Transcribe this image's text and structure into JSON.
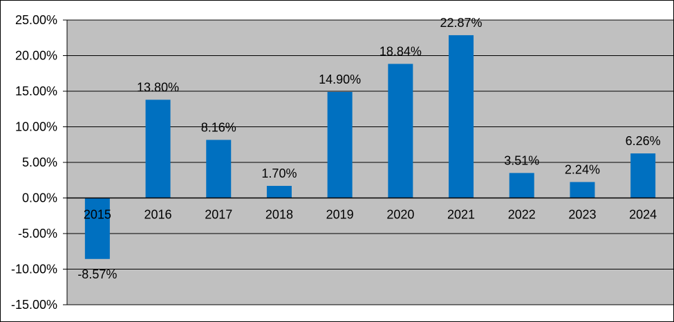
{
  "chart_data": {
    "type": "bar",
    "categories": [
      "2015",
      "2016",
      "2017",
      "2018",
      "2019",
      "2020",
      "2021",
      "2022",
      "2023",
      "2024"
    ],
    "values": [
      -8.57,
      13.8,
      8.16,
      1.7,
      14.9,
      18.84,
      22.87,
      3.51,
      2.24,
      6.26
    ],
    "data_labels": [
      "-8.57%",
      "13.80%",
      "8.16%",
      "1.70%",
      "14.90%",
      "18.84%",
      "22.87%",
      "3.51%",
      "2.24%",
      "6.26%"
    ],
    "y_ticks": [
      25,
      20,
      15,
      10,
      5,
      0,
      -5,
      -10,
      -15
    ],
    "y_tick_labels": [
      "25.00%",
      "20.00%",
      "15.00%",
      "10.00%",
      "5.00%",
      "0.00%",
      "-5.00%",
      "-10.00%",
      "-15.00%"
    ],
    "ylim": [
      -15,
      25
    ],
    "title": "",
    "xlabel": "",
    "ylabel": "",
    "grid": true,
    "legend": "none",
    "colors": {
      "bar": "#0070C0",
      "plot_background": "#C0C0C0",
      "gridline": "#000000",
      "axis": "#000000"
    }
  }
}
